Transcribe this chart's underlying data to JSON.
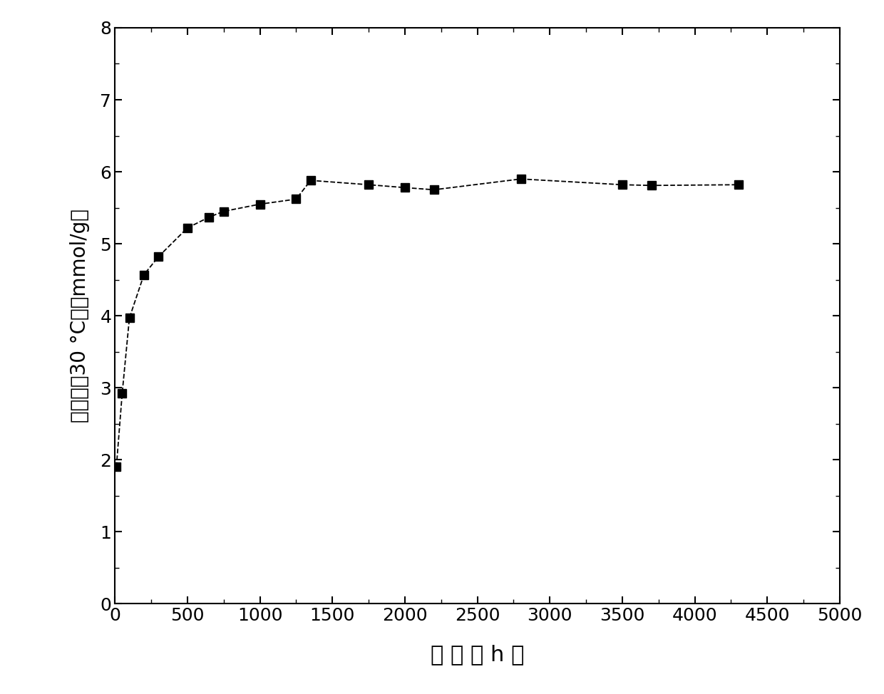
{
  "x": [
    10,
    50,
    100,
    200,
    300,
    500,
    650,
    750,
    1000,
    1250,
    1350,
    1750,
    2000,
    2200,
    2800,
    3500,
    3700,
    4300
  ],
  "y": [
    1.9,
    2.92,
    3.97,
    4.57,
    4.82,
    5.22,
    5.37,
    5.45,
    5.55,
    5.62,
    5.88,
    5.82,
    5.78,
    5.75,
    5.9,
    5.82,
    5.81,
    5.82
  ],
  "xlabel": "时 间 （ h ）",
  "ylabel": "吸附量（30 °C）（mmol/g）",
  "xlim": [
    0,
    5000
  ],
  "ylim": [
    0,
    8
  ],
  "xticks": [
    0,
    500,
    1000,
    1500,
    2000,
    2500,
    3000,
    3500,
    4000,
    4500,
    5000
  ],
  "yticks": [
    0,
    1,
    2,
    3,
    4,
    5,
    6,
    7,
    8
  ],
  "marker_color": "#000000",
  "line_color": "#000000",
  "background_color": "#ffffff",
  "marker": "s",
  "markersize": 9,
  "linewidth": 1.3,
  "linestyle": "--"
}
